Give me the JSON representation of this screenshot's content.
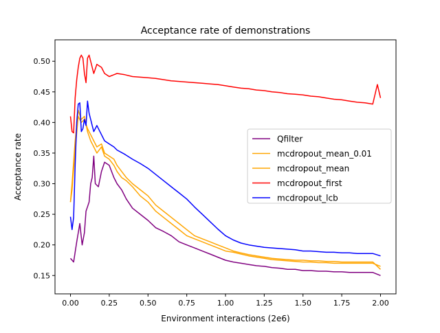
{
  "chart_data": {
    "type": "line",
    "title": "Acceptance rate of demonstrations",
    "xlabel": "Environment interactions (2e6)",
    "ylabel": "Acceptance rate",
    "xlim": [
      -0.1,
      2.1
    ],
    "ylim": [
      0.12,
      0.535
    ],
    "xticks": [
      0.0,
      0.25,
      0.5,
      0.75,
      1.0,
      1.25,
      1.5,
      1.75,
      2.0
    ],
    "xtick_labels": [
      "0.00",
      "0.25",
      "0.50",
      "0.75",
      "1.00",
      "1.25",
      "1.50",
      "1.75",
      "2.00"
    ],
    "yticks": [
      0.15,
      0.2,
      0.25,
      0.3,
      0.35,
      0.4,
      0.45,
      0.5
    ],
    "ytick_labels": [
      "0.15",
      "0.20",
      "0.25",
      "0.30",
      "0.35",
      "0.40",
      "0.45",
      "0.50"
    ],
    "grid": false,
    "legend_position": "center-right",
    "series": [
      {
        "name": "Qfilter",
        "color": "#800080",
        "points": [
          [
            0.0,
            0.178
          ],
          [
            0.02,
            0.172
          ],
          [
            0.04,
            0.205
          ],
          [
            0.06,
            0.235
          ],
          [
            0.075,
            0.2
          ],
          [
            0.09,
            0.22
          ],
          [
            0.1,
            0.255
          ],
          [
            0.12,
            0.27
          ],
          [
            0.13,
            0.3
          ],
          [
            0.14,
            0.31
          ],
          [
            0.15,
            0.345
          ],
          [
            0.16,
            0.3
          ],
          [
            0.18,
            0.295
          ],
          [
            0.2,
            0.32
          ],
          [
            0.22,
            0.335
          ],
          [
            0.25,
            0.33
          ],
          [
            0.28,
            0.31
          ],
          [
            0.3,
            0.3
          ],
          [
            0.33,
            0.29
          ],
          [
            0.36,
            0.275
          ],
          [
            0.4,
            0.26
          ],
          [
            0.45,
            0.25
          ],
          [
            0.5,
            0.24
          ],
          [
            0.55,
            0.228
          ],
          [
            0.6,
            0.222
          ],
          [
            0.65,
            0.215
          ],
          [
            0.7,
            0.205
          ],
          [
            0.75,
            0.2
          ],
          [
            0.8,
            0.195
          ],
          [
            0.85,
            0.19
          ],
          [
            0.9,
            0.185
          ],
          [
            0.95,
            0.18
          ],
          [
            1.0,
            0.175
          ],
          [
            1.05,
            0.172
          ],
          [
            1.1,
            0.17
          ],
          [
            1.15,
            0.168
          ],
          [
            1.2,
            0.166
          ],
          [
            1.25,
            0.165
          ],
          [
            1.3,
            0.163
          ],
          [
            1.35,
            0.162
          ],
          [
            1.4,
            0.16
          ],
          [
            1.45,
            0.16
          ],
          [
            1.5,
            0.158
          ],
          [
            1.55,
            0.158
          ],
          [
            1.6,
            0.157
          ],
          [
            1.65,
            0.157
          ],
          [
            1.7,
            0.156
          ],
          [
            1.75,
            0.156
          ],
          [
            1.8,
            0.155
          ],
          [
            1.85,
            0.155
          ],
          [
            1.9,
            0.155
          ],
          [
            1.95,
            0.155
          ],
          [
            2.0,
            0.15
          ]
        ]
      },
      {
        "name": "mcdropout_mean_0.01",
        "color": "#ffa500",
        "points": [
          [
            0.0,
            0.27
          ],
          [
            0.01,
            0.3
          ],
          [
            0.03,
            0.37
          ],
          [
            0.05,
            0.42
          ],
          [
            0.07,
            0.405
          ],
          [
            0.09,
            0.41
          ],
          [
            0.11,
            0.385
          ],
          [
            0.13,
            0.37
          ],
          [
            0.15,
            0.36
          ],
          [
            0.17,
            0.35
          ],
          [
            0.2,
            0.36
          ],
          [
            0.22,
            0.345
          ],
          [
            0.25,
            0.34
          ],
          [
            0.28,
            0.33
          ],
          [
            0.3,
            0.32
          ],
          [
            0.33,
            0.31
          ],
          [
            0.36,
            0.305
          ],
          [
            0.4,
            0.295
          ],
          [
            0.45,
            0.28
          ],
          [
            0.5,
            0.27
          ],
          [
            0.55,
            0.255
          ],
          [
            0.6,
            0.245
          ],
          [
            0.65,
            0.235
          ],
          [
            0.7,
            0.225
          ],
          [
            0.75,
            0.215
          ],
          [
            0.8,
            0.21
          ],
          [
            0.85,
            0.205
          ],
          [
            0.9,
            0.2
          ],
          [
            0.95,
            0.195
          ],
          [
            1.0,
            0.19
          ],
          [
            1.05,
            0.188
          ],
          [
            1.1,
            0.185
          ],
          [
            1.15,
            0.182
          ],
          [
            1.2,
            0.18
          ],
          [
            1.25,
            0.178
          ],
          [
            1.3,
            0.176
          ],
          [
            1.35,
            0.175
          ],
          [
            1.4,
            0.174
          ],
          [
            1.45,
            0.173
          ],
          [
            1.5,
            0.172
          ],
          [
            1.55,
            0.172
          ],
          [
            1.6,
            0.171
          ],
          [
            1.65,
            0.171
          ],
          [
            1.7,
            0.17
          ],
          [
            1.75,
            0.17
          ],
          [
            1.8,
            0.17
          ],
          [
            1.85,
            0.17
          ],
          [
            1.9,
            0.17
          ],
          [
            1.95,
            0.17
          ],
          [
            2.0,
            0.165
          ]
        ]
      },
      {
        "name": "mcdropout_mean",
        "color": "#ffa500",
        "points": [
          [
            0.0,
            0.27
          ],
          [
            0.01,
            0.29
          ],
          [
            0.03,
            0.355
          ],
          [
            0.05,
            0.41
          ],
          [
            0.07,
            0.4
          ],
          [
            0.09,
            0.405
          ],
          [
            0.11,
            0.39
          ],
          [
            0.13,
            0.38
          ],
          [
            0.15,
            0.37
          ],
          [
            0.17,
            0.36
          ],
          [
            0.2,
            0.365
          ],
          [
            0.22,
            0.35
          ],
          [
            0.25,
            0.345
          ],
          [
            0.28,
            0.34
          ],
          [
            0.3,
            0.33
          ],
          [
            0.33,
            0.32
          ],
          [
            0.36,
            0.31
          ],
          [
            0.4,
            0.3
          ],
          [
            0.45,
            0.29
          ],
          [
            0.5,
            0.28
          ],
          [
            0.55,
            0.265
          ],
          [
            0.6,
            0.255
          ],
          [
            0.65,
            0.245
          ],
          [
            0.7,
            0.235
          ],
          [
            0.75,
            0.225
          ],
          [
            0.8,
            0.215
          ],
          [
            0.85,
            0.21
          ],
          [
            0.9,
            0.205
          ],
          [
            0.95,
            0.2
          ],
          [
            1.0,
            0.195
          ],
          [
            1.05,
            0.19
          ],
          [
            1.1,
            0.187
          ],
          [
            1.15,
            0.184
          ],
          [
            1.2,
            0.182
          ],
          [
            1.25,
            0.18
          ],
          [
            1.3,
            0.178
          ],
          [
            1.35,
            0.177
          ],
          [
            1.4,
            0.176
          ],
          [
            1.45,
            0.175
          ],
          [
            1.5,
            0.175
          ],
          [
            1.55,
            0.174
          ],
          [
            1.6,
            0.174
          ],
          [
            1.65,
            0.173
          ],
          [
            1.7,
            0.173
          ],
          [
            1.75,
            0.172
          ],
          [
            1.8,
            0.172
          ],
          [
            1.85,
            0.172
          ],
          [
            1.9,
            0.172
          ],
          [
            1.95,
            0.172
          ],
          [
            2.0,
            0.16
          ]
        ]
      },
      {
        "name": "mcdropout_first",
        "color": "#ff0000",
        "points": [
          [
            0.0,
            0.41
          ],
          [
            0.01,
            0.385
          ],
          [
            0.02,
            0.383
          ],
          [
            0.03,
            0.44
          ],
          [
            0.04,
            0.47
          ],
          [
            0.05,
            0.49
          ],
          [
            0.06,
            0.505
          ],
          [
            0.07,
            0.51
          ],
          [
            0.08,
            0.505
          ],
          [
            0.09,
            0.48
          ],
          [
            0.1,
            0.465
          ],
          [
            0.11,
            0.505
          ],
          [
            0.12,
            0.51
          ],
          [
            0.13,
            0.5
          ],
          [
            0.14,
            0.49
          ],
          [
            0.15,
            0.48
          ],
          [
            0.17,
            0.495
          ],
          [
            0.2,
            0.49
          ],
          [
            0.22,
            0.48
          ],
          [
            0.25,
            0.475
          ],
          [
            0.28,
            0.478
          ],
          [
            0.3,
            0.48
          ],
          [
            0.35,
            0.478
          ],
          [
            0.4,
            0.475
          ],
          [
            0.45,
            0.474
          ],
          [
            0.5,
            0.473
          ],
          [
            0.55,
            0.472
          ],
          [
            0.6,
            0.47
          ],
          [
            0.65,
            0.468
          ],
          [
            0.7,
            0.467
          ],
          [
            0.75,
            0.466
          ],
          [
            0.8,
            0.465
          ],
          [
            0.85,
            0.464
          ],
          [
            0.9,
            0.463
          ],
          [
            0.95,
            0.462
          ],
          [
            1.0,
            0.46
          ],
          [
            1.05,
            0.458
          ],
          [
            1.1,
            0.456
          ],
          [
            1.15,
            0.455
          ],
          [
            1.2,
            0.453
          ],
          [
            1.25,
            0.452
          ],
          [
            1.3,
            0.45
          ],
          [
            1.35,
            0.449
          ],
          [
            1.4,
            0.447
          ],
          [
            1.45,
            0.446
          ],
          [
            1.5,
            0.445
          ],
          [
            1.55,
            0.443
          ],
          [
            1.6,
            0.442
          ],
          [
            1.65,
            0.44
          ],
          [
            1.7,
            0.438
          ],
          [
            1.75,
            0.437
          ],
          [
            1.8,
            0.435
          ],
          [
            1.85,
            0.433
          ],
          [
            1.9,
            0.432
          ],
          [
            1.95,
            0.43
          ],
          [
            1.98,
            0.462
          ],
          [
            2.0,
            0.44
          ]
        ]
      },
      {
        "name": "mcdropout_lcb",
        "color": "#0000ff",
        "points": [
          [
            0.0,
            0.246
          ],
          [
            0.01,
            0.225
          ],
          [
            0.02,
            0.245
          ],
          [
            0.03,
            0.33
          ],
          [
            0.04,
            0.4
          ],
          [
            0.05,
            0.43
          ],
          [
            0.06,
            0.432
          ],
          [
            0.07,
            0.385
          ],
          [
            0.08,
            0.39
          ],
          [
            0.09,
            0.405
          ],
          [
            0.1,
            0.395
          ],
          [
            0.11,
            0.435
          ],
          [
            0.12,
            0.415
          ],
          [
            0.13,
            0.405
          ],
          [
            0.14,
            0.395
          ],
          [
            0.15,
            0.385
          ],
          [
            0.17,
            0.395
          ],
          [
            0.2,
            0.38
          ],
          [
            0.22,
            0.37
          ],
          [
            0.25,
            0.365
          ],
          [
            0.28,
            0.36
          ],
          [
            0.3,
            0.355
          ],
          [
            0.35,
            0.348
          ],
          [
            0.4,
            0.34
          ],
          [
            0.45,
            0.333
          ],
          [
            0.5,
            0.325
          ],
          [
            0.55,
            0.315
          ],
          [
            0.6,
            0.305
          ],
          [
            0.65,
            0.295
          ],
          [
            0.7,
            0.285
          ],
          [
            0.75,
            0.275
          ],
          [
            0.8,
            0.262
          ],
          [
            0.85,
            0.25
          ],
          [
            0.9,
            0.238
          ],
          [
            0.95,
            0.226
          ],
          [
            1.0,
            0.215
          ],
          [
            1.05,
            0.208
          ],
          [
            1.1,
            0.203
          ],
          [
            1.15,
            0.2
          ],
          [
            1.2,
            0.198
          ],
          [
            1.25,
            0.196
          ],
          [
            1.3,
            0.195
          ],
          [
            1.35,
            0.194
          ],
          [
            1.4,
            0.193
          ],
          [
            1.45,
            0.192
          ],
          [
            1.5,
            0.19
          ],
          [
            1.55,
            0.19
          ],
          [
            1.6,
            0.189
          ],
          [
            1.65,
            0.188
          ],
          [
            1.7,
            0.188
          ],
          [
            1.75,
            0.187
          ],
          [
            1.8,
            0.187
          ],
          [
            1.85,
            0.186
          ],
          [
            1.9,
            0.186
          ],
          [
            1.95,
            0.186
          ],
          [
            2.0,
            0.182
          ]
        ]
      }
    ]
  }
}
